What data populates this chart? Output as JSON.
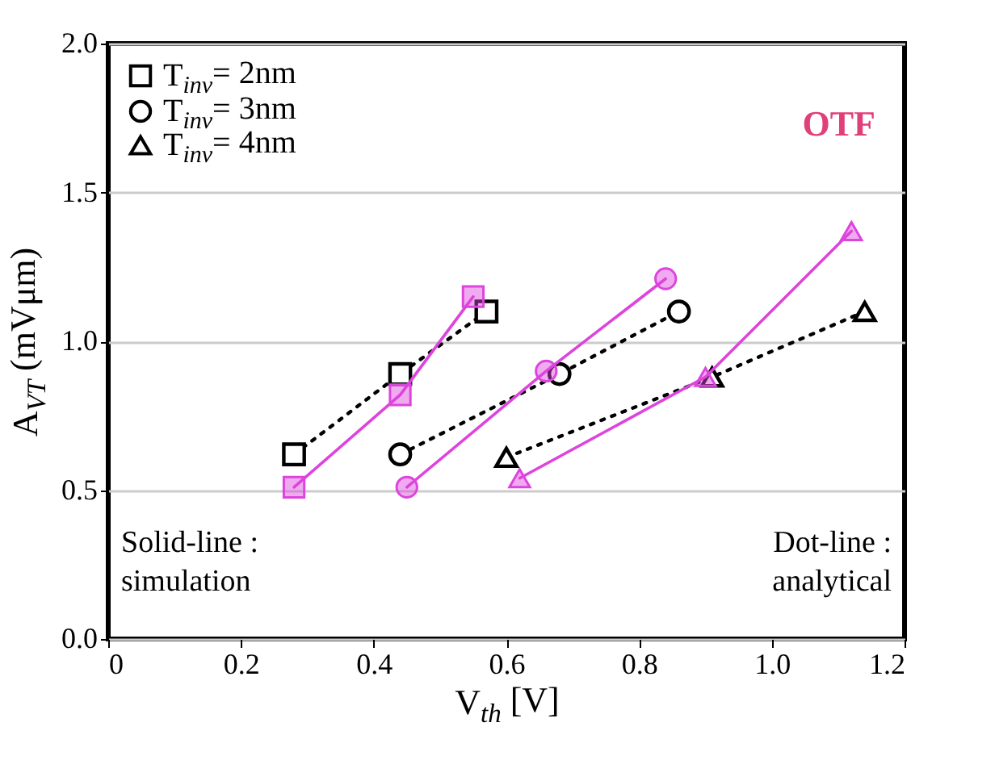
{
  "chart_data": {
    "type": "line",
    "xlabel": "V$_{th}$ [V]",
    "ylabel": "A$_{VT}$ (mVμm)",
    "xlim": [
      0,
      1.2
    ],
    "xticks": [
      0,
      0.2,
      0.4,
      0.6,
      0.8,
      {
        "value": 1,
        "label": "1.0"
      },
      1.2
    ],
    "ylim": [
      0,
      2
    ],
    "yticks": [
      {
        "value": 0,
        "label": "0.0"
      },
      0.5,
      {
        "value": 1,
        "label": "1.0"
      },
      1.5,
      {
        "value": 2,
        "label": "2.0"
      }
    ],
    "grid": "y",
    "legend": "top left",
    "annotations": [
      "OTF",
      "Solid-line :\nsimulation",
      "Dot-line :\nanalytical"
    ],
    "series": [
      {
        "name": "T$_{inv}$= 2nm",
        "color": "#000000",
        "marker": "square",
        "line_style": "dotted",
        "x": [
          0.28,
          0.44,
          0.57
        ],
        "values": [
          0.62,
          0.89,
          1.1
        ]
      },
      {
        "name": "T$_{inv}$= 3nm",
        "color": "#000000",
        "marker": "circle",
        "line_style": "dotted",
        "x": [
          0.44,
          0.68,
          0.86
        ],
        "values": [
          0.62,
          0.89,
          1.1
        ]
      },
      {
        "name": "T$_{inv}$= 4nm",
        "color": "#000000",
        "marker": "triangle",
        "line_style": "dotted",
        "x": [
          0.6,
          0.91,
          1.14
        ],
        "values": [
          0.61,
          0.88,
          1.1
        ]
      },
      {
        "color": "#dd44dd",
        "marker": "square",
        "line_style": "solid",
        "x": [
          0.28,
          0.44,
          0.55
        ],
        "values": [
          0.51,
          0.82,
          1.15
        ]
      },
      {
        "color": "#dd44dd",
        "marker": "circle",
        "line_style": "solid",
        "x": [
          0.45,
          0.66,
          0.84
        ],
        "values": [
          0.51,
          0.9,
          1.21
        ]
      },
      {
        "color": "#dd44dd",
        "marker": "triangle",
        "line_style": "solid",
        "x": [
          0.62,
          0.9,
          1.12
        ],
        "values": [
          0.54,
          0.88,
          1.37
        ]
      }
    ]
  }
}
